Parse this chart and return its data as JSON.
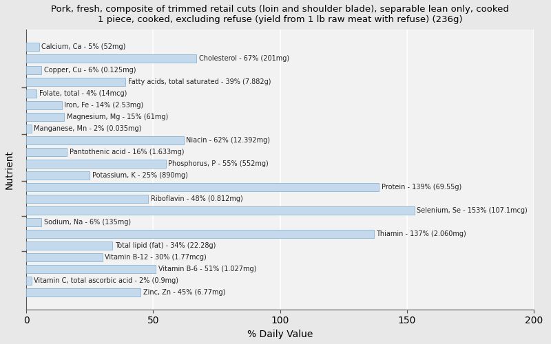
{
  "title": "Pork, fresh, composite of trimmed retail cuts (loin and shoulder blade), separable lean only, cooked\n1 piece, cooked, excluding refuse (yield from 1 lb raw meat with refuse) (236g)",
  "xlabel": "% Daily Value",
  "ylabel": "Nutrient",
  "xlim": [
    0,
    200
  ],
  "xticks": [
    0,
    50,
    100,
    150,
    200
  ],
  "background_color": "#e8e8e8",
  "plot_bg_color": "#f2f2f2",
  "bar_color": "#c5d9ec",
  "bar_edge_color": "#8ab4d4",
  "nutrients": [
    "Calcium, Ca - 5% (52mg)",
    "Cholesterol - 67% (201mg)",
    "Copper, Cu - 6% (0.125mg)",
    "Fatty acids, total saturated - 39% (7.882g)",
    "Folate, total - 4% (14mcg)",
    "Iron, Fe - 14% (2.53mg)",
    "Magnesium, Mg - 15% (61mg)",
    "Manganese, Mn - 2% (0.035mg)",
    "Niacin - 62% (12.392mg)",
    "Pantothenic acid - 16% (1.633mg)",
    "Phosphorus, P - 55% (552mg)",
    "Potassium, K - 25% (890mg)",
    "Protein - 139% (69.55g)",
    "Riboflavin - 48% (0.812mg)",
    "Selenium, Se - 153% (107.1mcg)",
    "Sodium, Na - 6% (135mg)",
    "Thiamin - 137% (2.060mg)",
    "Total lipid (fat) - 34% (22.28g)",
    "Vitamin B-12 - 30% (1.77mcg)",
    "Vitamin B-6 - 51% (1.027mg)",
    "Vitamin C, total ascorbic acid - 2% (0.9mg)",
    "Zinc, Zn - 45% (6.77mg)"
  ],
  "values": [
    5,
    67,
    6,
    39,
    4,
    14,
    15,
    2,
    62,
    16,
    55,
    25,
    139,
    48,
    153,
    6,
    137,
    34,
    30,
    51,
    2,
    45
  ],
  "group_separator_positions": [
    1.5,
    6.5,
    11.5,
    14.5,
    17.5
  ]
}
